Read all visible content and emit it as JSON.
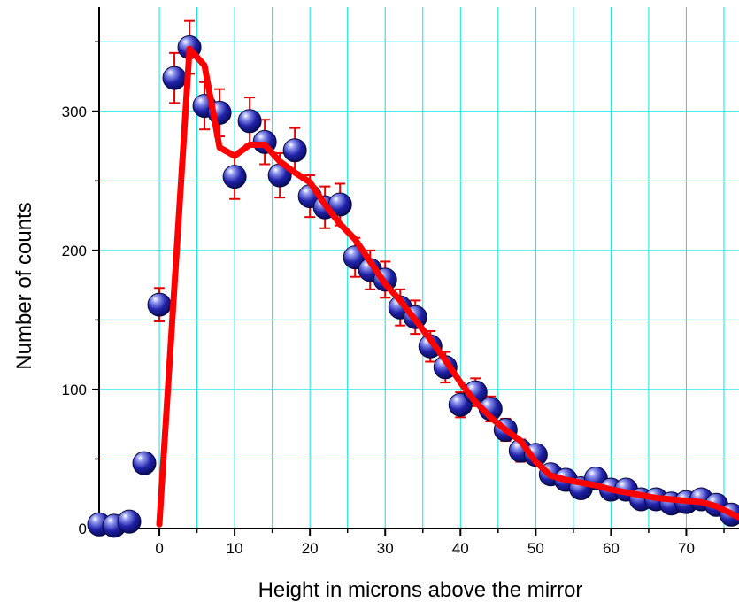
{
  "chart_data": {
    "type": "scatter",
    "xlabel": "Height in microns above the mirror",
    "ylabel": "Number of counts",
    "xlim": [
      -8,
      77
    ],
    "ylim": [
      0,
      375
    ],
    "x_ticks": [
      0,
      10,
      20,
      30,
      40,
      50,
      60,
      70
    ],
    "y_ticks": [
      0,
      100,
      200,
      300
    ],
    "x_minor_ticks": [
      5,
      15,
      25,
      35,
      45,
      55,
      65,
      75
    ],
    "y_minor_ticks": [
      50,
      150,
      250,
      350
    ],
    "grid": true,
    "grid_color": "#00e5e5",
    "series": [
      {
        "kind": "points_with_errorbars",
        "color": "#1a1a9a",
        "errorbar_color": "#e60000",
        "points": [
          {
            "x": -8,
            "y": 3,
            "err": 4
          },
          {
            "x": -6,
            "y": 2,
            "err": 4
          },
          {
            "x": -4,
            "y": 5,
            "err": 4
          },
          {
            "x": -2,
            "y": 47,
            "err": 7
          },
          {
            "x": 0,
            "y": 161,
            "err": 12
          },
          {
            "x": 2,
            "y": 324,
            "err": 18
          },
          {
            "x": 4,
            "y": 346,
            "err": 19
          },
          {
            "x": 6,
            "y": 304,
            "err": 17
          },
          {
            "x": 8,
            "y": 299,
            "err": 17
          },
          {
            "x": 10,
            "y": 253,
            "err": 16
          },
          {
            "x": 12,
            "y": 293,
            "err": 17
          },
          {
            "x": 14,
            "y": 278,
            "err": 16
          },
          {
            "x": 16,
            "y": 254,
            "err": 16
          },
          {
            "x": 18,
            "y": 272,
            "err": 16
          },
          {
            "x": 20,
            "y": 239,
            "err": 15
          },
          {
            "x": 22,
            "y": 231,
            "err": 15
          },
          {
            "x": 24,
            "y": 233,
            "err": 15
          },
          {
            "x": 26,
            "y": 195,
            "err": 14
          },
          {
            "x": 28,
            "y": 186,
            "err": 14
          },
          {
            "x": 30,
            "y": 179,
            "err": 13
          },
          {
            "x": 32,
            "y": 159,
            "err": 13
          },
          {
            "x": 34,
            "y": 152,
            "err": 12
          },
          {
            "x": 36,
            "y": 131,
            "err": 11
          },
          {
            "x": 38,
            "y": 116,
            "err": 11
          },
          {
            "x": 40,
            "y": 89,
            "err": 9
          },
          {
            "x": 42,
            "y": 98,
            "err": 10
          },
          {
            "x": 44,
            "y": 86,
            "err": 9
          },
          {
            "x": 46,
            "y": 71,
            "err": 8
          },
          {
            "x": 48,
            "y": 56,
            "err": 8
          },
          {
            "x": 50,
            "y": 53,
            "err": 7
          },
          {
            "x": 52,
            "y": 39,
            "err": 6
          },
          {
            "x": 54,
            "y": 35,
            "err": 6
          },
          {
            "x": 56,
            "y": 29,
            "err": 5
          },
          {
            "x": 58,
            "y": 36,
            "err": 6
          },
          {
            "x": 60,
            "y": 28,
            "err": 5
          },
          {
            "x": 62,
            "y": 28,
            "err": 5
          },
          {
            "x": 64,
            "y": 21,
            "err": 5
          },
          {
            "x": 66,
            "y": 21,
            "err": 5
          },
          {
            "x": 68,
            "y": 18,
            "err": 4
          },
          {
            "x": 70,
            "y": 19,
            "err": 4
          },
          {
            "x": 72,
            "y": 21,
            "err": 5
          },
          {
            "x": 74,
            "y": 17,
            "err": 4
          },
          {
            "x": 76,
            "y": 10,
            "err": 3
          }
        ]
      },
      {
        "kind": "line",
        "color": "#ff0000",
        "x": [
          0,
          4,
          6,
          8,
          10,
          12,
          14,
          16,
          18,
          20,
          22,
          24,
          26,
          28,
          30,
          32,
          34,
          36,
          38,
          40,
          42,
          44,
          46,
          48,
          50,
          52,
          54,
          56,
          58,
          60,
          62,
          64,
          66,
          68,
          70,
          72,
          74,
          77
        ],
        "y": [
          3,
          345,
          333,
          274,
          268,
          276,
          276,
          264,
          256,
          249,
          233,
          219,
          208,
          192,
          176,
          164,
          150,
          136,
          121,
          105,
          91,
          80,
          71,
          63,
          48,
          38,
          35,
          33,
          31,
          28,
          26,
          24,
          22,
          21,
          20,
          19,
          16,
          8
        ]
      }
    ]
  }
}
